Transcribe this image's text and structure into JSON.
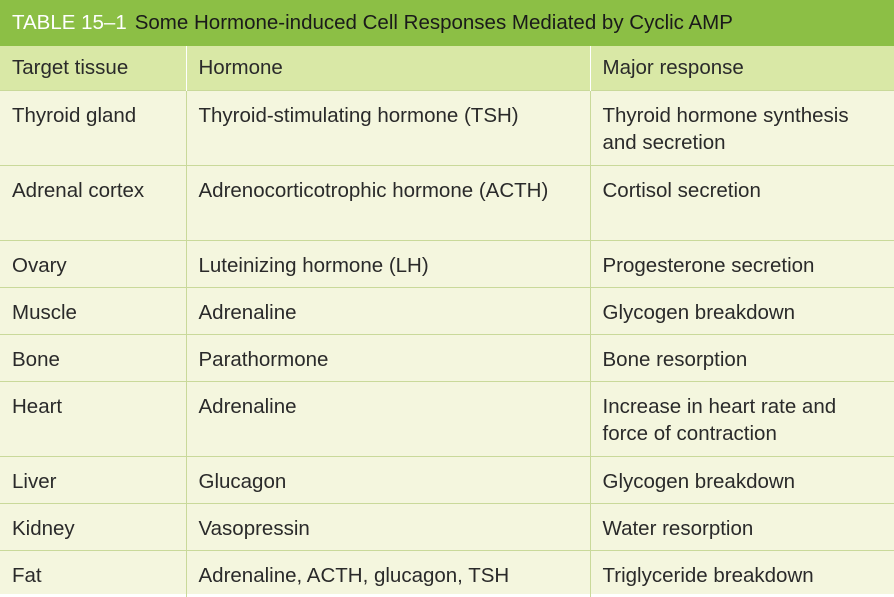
{
  "caption": {
    "label": "TABLE 15–1",
    "title": "Some Hormone-induced Cell Responses Mediated by Cyclic AMP"
  },
  "columns": [
    "Target tissue",
    "Hormone",
    "Major response"
  ],
  "rows": [
    [
      "Thyroid gland",
      "Thyroid-stimulating hormone (TSH)",
      "Thyroid hormone synthesis and secretion"
    ],
    [
      "Adrenal cortex",
      "Adrenocorticotrophic hormone (ACTH)",
      "Cortisol secretion"
    ],
    [
      "Ovary",
      "Luteinizing hormone (LH)",
      "Progesterone secretion"
    ],
    [
      "Muscle",
      "Adrenaline",
      "Glycogen breakdown"
    ],
    [
      "Bone",
      "Parathormone",
      "Bone resorption"
    ],
    [
      "Heart",
      "Adrenaline",
      "Increase in heart rate and force of contraction"
    ],
    [
      "Liver",
      "Glucagon",
      "Glycogen breakdown"
    ],
    [
      "Kidney",
      "Vasopressin",
      "Water resorption"
    ],
    [
      "Fat",
      "Adrenaline, ACTH, glucagon, TSH",
      "Triglyceride breakdown"
    ]
  ],
  "colors": {
    "caption_bg": "#8cbf45",
    "header_bg": "#d9e8a6",
    "body_bg": "#f4f6de",
    "rule": "#c9d99a"
  }
}
